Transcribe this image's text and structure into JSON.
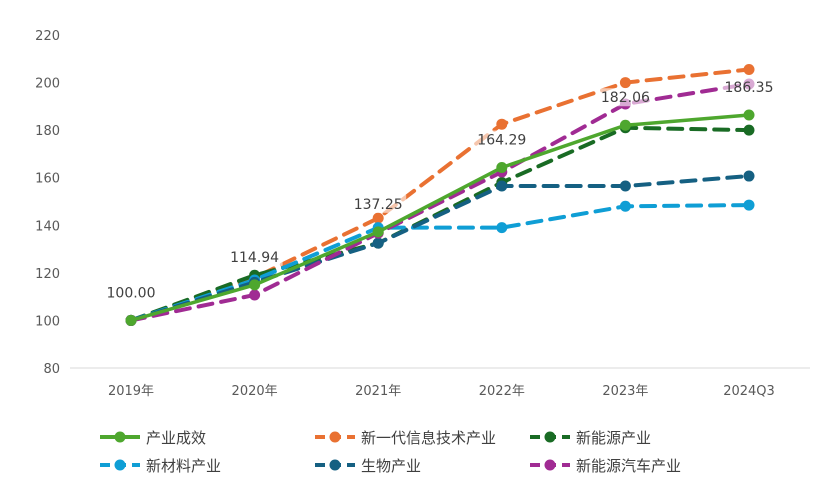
{
  "chart_data": {
    "type": "line",
    "categories": [
      "2019年",
      "2020年",
      "2021年",
      "2022年",
      "2023年",
      "2024Q3"
    ],
    "ylim": [
      80,
      220
    ],
    "yticks": [
      80,
      100,
      120,
      140,
      160,
      180,
      200,
      220
    ],
    "grid": false,
    "legend_position": "bottom",
    "series": [
      {
        "name": "产业成效",
        "color": "#4EA72E",
        "dashed": false,
        "values": [
          100.0,
          114.94,
          137.25,
          164.29,
          182.06,
          186.35
        ],
        "labels": [
          "100.00",
          "114.94",
          "137.25",
          "164.29",
          "182.06",
          "186.35"
        ]
      },
      {
        "name": "新一代信息技术产业",
        "color": "#E97132",
        "dashed": true,
        "values": [
          100,
          118,
          143,
          182.5,
          200,
          205.5
        ]
      },
      {
        "name": "新能源产业",
        "color": "#196B24",
        "dashed": true,
        "values": [
          100,
          119,
          132.5,
          158,
          181,
          180
        ]
      },
      {
        "name": "新材料产业",
        "color": "#0F9ED5",
        "dashed": true,
        "values": [
          100,
          117,
          139,
          139,
          148,
          148.5
        ]
      },
      {
        "name": "生物产业",
        "color": "#156082",
        "dashed": true,
        "values": [
          100,
          116,
          132.5,
          156.5,
          156.5,
          160.7
        ]
      },
      {
        "name": "新能源汽车产业",
        "color": "#A02B93",
        "dashed": true,
        "values": [
          100,
          110.7,
          136.7,
          162.4,
          191,
          199.4
        ]
      }
    ]
  }
}
